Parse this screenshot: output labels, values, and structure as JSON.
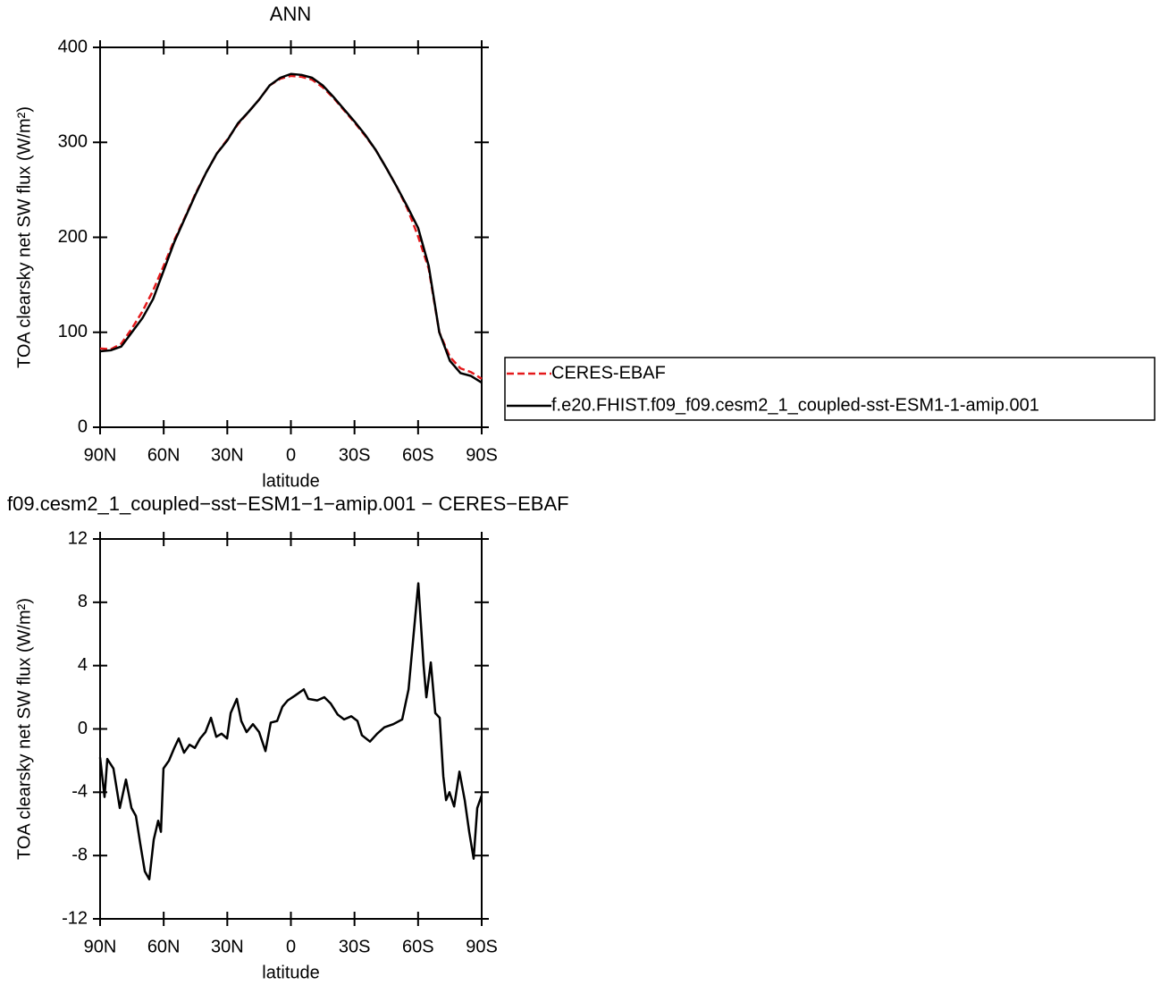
{
  "chart_data": [
    {
      "type": "line",
      "title": "ANN",
      "xlabel": "latitude",
      "ylabel": "TOA clearsky net SW flux (W/m²)",
      "x": [
        90,
        85,
        80,
        75,
        70,
        65,
        60,
        55,
        50,
        45,
        40,
        35,
        30,
        25,
        20,
        15,
        10,
        5,
        0,
        -5,
        -10,
        -15,
        -20,
        -25,
        -30,
        -35,
        -40,
        -45,
        -50,
        -55,
        -60,
        -65,
        -70,
        -75,
        -80,
        -85,
        -90
      ],
      "series": [
        {
          "name": "CERES-EBAF",
          "color": "#e41a1c",
          "linestyle": "dashed",
          "values": [
            83,
            82,
            88,
            104,
            122,
            144,
            170,
            197,
            221,
            246,
            268,
            288,
            303,
            319,
            332,
            345,
            360,
            367,
            370,
            369,
            366,
            358,
            347,
            334,
            321,
            307,
            292,
            273,
            253,
            230,
            201,
            167,
            100,
            74,
            62,
            58,
            51
          ]
        },
        {
          "name": "f.e20.FHIST.f09_f09.cesm2_1_coupled-sst-ESM1-1-amip.001",
          "color": "#000000",
          "linestyle": "solid",
          "values": [
            80,
            81,
            85,
            100,
            115,
            135,
            165,
            195,
            220,
            245,
            268,
            288,
            302,
            320,
            332,
            345,
            360,
            368,
            372,
            371,
            368,
            360,
            348,
            335,
            322,
            308,
            292,
            273,
            253,
            232,
            210,
            170,
            100,
            70,
            57,
            54,
            47
          ]
        }
      ],
      "xlim": [
        90,
        -90
      ],
      "xticks": [
        {
          "value": 90,
          "label": "90N"
        },
        {
          "value": 60,
          "label": "60N"
        },
        {
          "value": 30,
          "label": "30N"
        },
        0,
        {
          "value": -30,
          "label": "30S"
        },
        {
          "value": -60,
          "label": "60S"
        },
        {
          "value": -90,
          "label": "90S"
        }
      ],
      "ylim": [
        0,
        400
      ],
      "yticks": [
        0,
        100,
        200,
        300,
        400
      ],
      "legend": "right"
    },
    {
      "type": "line",
      "title": "f09.cesm2_1_coupled−sst−ESM1−1−amip.001 − CERES−EBAF",
      "xlabel": "latitude",
      "ylabel": "TOA clearsky net SW flux (W/m²)",
      "x": [
        90,
        87.9,
        86.6,
        83.7,
        80.7,
        77.8,
        75.2,
        73.1,
        71,
        68.9,
        66.8,
        64.7,
        62.6,
        61.3,
        60.1,
        57.5,
        55,
        52.9,
        50.4,
        47.8,
        45.3,
        42.8,
        40.3,
        37.7,
        35.2,
        32.7,
        30.1,
        28.4,
        25.5,
        23.4,
        20.9,
        17.9,
        15,
        12,
        9.5,
        6.5,
        4,
        1.5,
        -1.9,
        -6.1,
        -8.2,
        -12.4,
        -15.8,
        -18.8,
        -22.1,
        -25.1,
        -28.5,
        -31.4,
        -33.5,
        -37.3,
        -40.7,
        -44.1,
        -48.3,
        -52.5,
        -55.5,
        -60.1,
        -62.6,
        -63.9,
        -66,
        -68.1,
        -70.2,
        -71.9,
        -73.2,
        -74.8,
        -77,
        -79.5,
        -82,
        -84.1,
        -86.2,
        -87.9,
        -90
      ],
      "series": [
        {
          "color": "#000000",
          "linestyle": "solid",
          "values": [
            -1.8,
            -4.3,
            -1.9,
            -2.5,
            -5.0,
            -3.2,
            -5.0,
            -5.5,
            -7.3,
            -9.0,
            -9.5,
            -7.0,
            -5.8,
            -6.5,
            -2.5,
            -2.0,
            -1.2,
            -0.6,
            -1.5,
            -1.0,
            -1.2,
            -0.6,
            -0.2,
            0.7,
            -0.5,
            -0.3,
            -0.6,
            1.0,
            1.9,
            0.5,
            -0.2,
            0.3,
            -0.2,
            -1.4,
            0.4,
            0.5,
            1.4,
            1.8,
            2.1,
            2.5,
            1.9,
            1.8,
            2.0,
            1.6,
            0.9,
            0.6,
            0.8,
            0.5,
            -0.4,
            -0.8,
            -0.3,
            0.1,
            0.3,
            0.6,
            2.5,
            9.2,
            4.0,
            2.0,
            4.2,
            1.0,
            0.7,
            -3.0,
            -4.5,
            -4.0,
            -4.9,
            -2.7,
            -4.5,
            -6.5,
            -8.2,
            -5.0,
            -4.2
          ]
        }
      ],
      "xlim": [
        90,
        -90
      ],
      "xticks": [
        {
          "value": 90,
          "label": "90N"
        },
        {
          "value": 60,
          "label": "60N"
        },
        {
          "value": 30,
          "label": "30N"
        },
        0,
        {
          "value": -30,
          "label": "30S"
        },
        {
          "value": -60,
          "label": "60S"
        },
        {
          "value": -90,
          "label": "90S"
        }
      ],
      "ylim": [
        -12,
        12
      ],
      "yticks": [
        -12,
        -8,
        -4,
        0,
        4,
        8,
        12
      ]
    }
  ]
}
